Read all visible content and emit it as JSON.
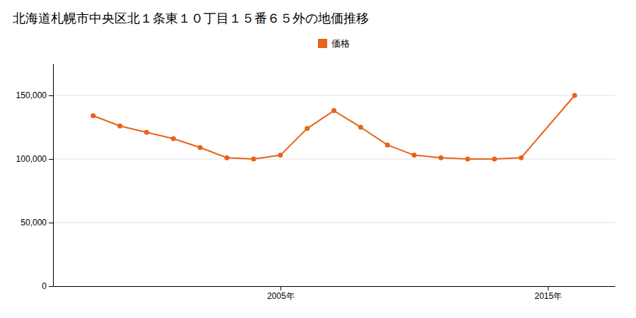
{
  "chart_data": {
    "type": "line",
    "title": "北海道札幌市中央区北１条東１０丁目１５番６５外の地価推移",
    "x": [
      1998,
      1999,
      2000,
      2001,
      2002,
      2003,
      2004,
      2005,
      2006,
      2007,
      2008,
      2009,
      2010,
      2011,
      2012,
      2013,
      2014,
      2016
    ],
    "series": [
      {
        "name": "価格",
        "color": "#e8621a",
        "marker": "circle",
        "values": [
          134000,
          126000,
          121000,
          116000,
          109000,
          101000,
          100000,
          103000,
          124000,
          138000,
          125000,
          111000,
          103000,
          101000,
          100000,
          100000,
          101000,
          150000
        ]
      }
    ],
    "xlim": [
      1996.5,
      2017.5
    ],
    "xticks": [
      {
        "value": 2005,
        "label": "2005年"
      },
      {
        "value": 2015,
        "label": "2015年"
      }
    ],
    "ylim": [
      0,
      175000
    ],
    "yticks": [
      0,
      {
        "value": 50000,
        "label": "50,000"
      },
      {
        "value": 100000,
        "label": "100,000"
      },
      {
        "value": 150000,
        "label": "150,000"
      }
    ],
    "grid": true,
    "legend": "top"
  }
}
